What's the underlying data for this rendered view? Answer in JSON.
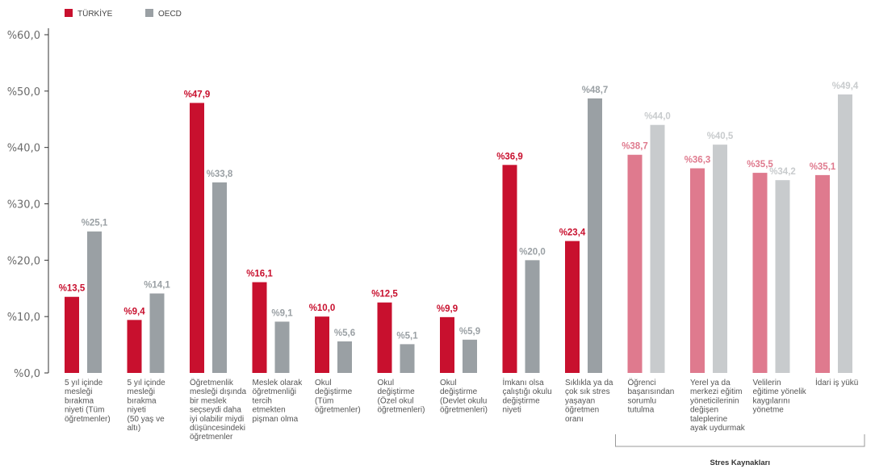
{
  "chart_data": {
    "type": "bar",
    "ylim": [
      0,
      60
    ],
    "yticks": [
      "%0,0",
      "%10,0",
      "%20,0",
      "%30,0",
      "%40,0",
      "%50,0",
      "%60,0"
    ],
    "grid": false,
    "legend_position": "top-left",
    "categories": [
      [
        "5 yıl içinde",
        "mesleği",
        "bırakma",
        "niyeti (Tüm",
        "öğretmenler)"
      ],
      [
        "5 yıl içinde",
        "mesleği",
        "bırakma",
        "niyeti",
        "(50 yaş ve",
        "altı)"
      ],
      [
        "Öğretmenlik",
        "mesleği dışında",
        "bir meslek",
        "seçseydi daha",
        "iyi olabilir miydi",
        "düşüncesindeki",
        "öğretmenler"
      ],
      [
        "Meslek olarak",
        "öğretmenliği",
        "tercih",
        "etmekten",
        "pişman olma"
      ],
      [
        "Okul",
        "değiştirme",
        "(Tüm",
        "öğretmenler)"
      ],
      [
        "Okul",
        "değiştirme",
        "(Özel okul",
        "öğretmenleri)"
      ],
      [
        "Okul",
        "değiştirme",
        "(Devlet okulu",
        "öğretmenleri)"
      ],
      [
        "İmkanı olsa",
        "çalıştığı okulu",
        "değiştirme",
        "niyeti"
      ],
      [
        "Sıklıkla ya da",
        "çok sık stres",
        "yaşayan",
        "öğretmen",
        "oranı"
      ],
      [
        "Öğrenci",
        "başarısından",
        "sorumlu",
        "tutulma"
      ],
      [
        "Yerel ya da",
        "merkezi eğitim",
        "yöneticilerinin",
        "değişen",
        "taleplerine",
        "ayak uydurmak"
      ],
      [
        "Velilerin",
        "eğitime yönelik",
        "kaygılarını",
        "yönetme"
      ],
      [
        "İdari iş yükü"
      ]
    ],
    "series": [
      {
        "name": "TÜRKİYE",
        "color": "#c8102e",
        "light_color": "#df7a8e",
        "values": [
          13.5,
          9.4,
          47.9,
          16.1,
          10.0,
          12.5,
          9.9,
          36.9,
          23.4,
          38.7,
          36.3,
          35.5,
          35.1
        ],
        "labels": [
          "%13,5",
          "%9,4",
          "%47,9",
          "%16,1",
          "%10,0",
          "%12,5",
          "%9,9",
          "%36,9",
          "%23,4",
          "%38,7",
          "%36,3",
          "%35,5",
          "%35,1"
        ]
      },
      {
        "name": "OECD",
        "color": "#9aa0a4",
        "light_color": "#c8cbcd",
        "values": [
          25.1,
          14.1,
          33.8,
          9.1,
          5.6,
          5.1,
          5.9,
          20.0,
          48.7,
          44.0,
          40.5,
          34.2,
          49.4
        ],
        "labels": [
          "%25,1",
          "%14,1",
          "%33,8",
          "%9,1",
          "%5,6",
          "%5,1",
          "%5,9",
          "%20,0",
          "%48,7",
          "%44,0",
          "%40,5",
          "%34,2",
          "%49,4"
        ]
      }
    ],
    "light_categories": [
      9,
      10,
      11,
      12
    ],
    "bracket_label": "Stres Kaynakları",
    "bracket_color": "#999999",
    "axis_color": "#333333"
  }
}
